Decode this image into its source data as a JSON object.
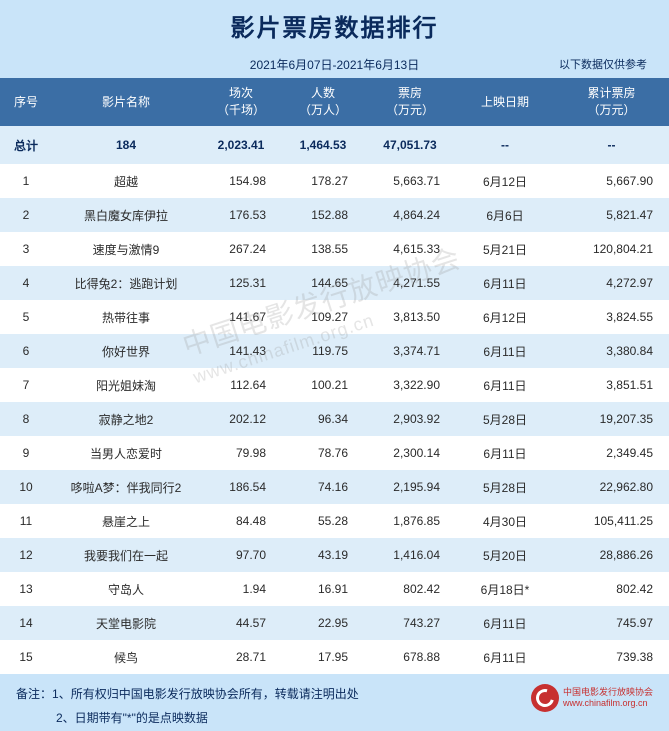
{
  "title": "影片票房数据排行",
  "date_range": "2021年6月07日-2021年6月13日",
  "disclaimer": "以下数据仅供参考",
  "columns": {
    "rank": "序号",
    "name": "影片名称",
    "screenings": "场次",
    "screenings_unit": "（千场）",
    "admissions": "人数",
    "admissions_unit": "（万人）",
    "box_office": "票房",
    "box_office_unit": "（万元）",
    "release_date": "上映日期",
    "cumulative": "累计票房",
    "cumulative_unit": "（万元）"
  },
  "total": {
    "label": "总计",
    "count": "184",
    "screenings": "2,023.41",
    "admissions": "1,464.53",
    "box_office": "47,051.73",
    "release_date": "--",
    "cumulative": "--"
  },
  "rows": [
    {
      "rank": "1",
      "name": "超越",
      "screenings": "154.98",
      "admissions": "178.27",
      "box_office": "5,663.71",
      "release_date": "6月12日",
      "cumulative": "5,667.90"
    },
    {
      "rank": "2",
      "name": "黑白魔女库伊拉",
      "screenings": "176.53",
      "admissions": "152.88",
      "box_office": "4,864.24",
      "release_date": "6月6日",
      "cumulative": "5,821.47"
    },
    {
      "rank": "3",
      "name": "速度与激情9",
      "screenings": "267.24",
      "admissions": "138.55",
      "box_office": "4,615.33",
      "release_date": "5月21日",
      "cumulative": "120,804.21"
    },
    {
      "rank": "4",
      "name": "比得兔2：逃跑计划",
      "screenings": "125.31",
      "admissions": "144.65",
      "box_office": "4,271.55",
      "release_date": "6月11日",
      "cumulative": "4,272.97"
    },
    {
      "rank": "5",
      "name": "热带往事",
      "screenings": "141.67",
      "admissions": "109.27",
      "box_office": "3,813.50",
      "release_date": "6月12日",
      "cumulative": "3,824.55"
    },
    {
      "rank": "6",
      "name": "你好世界",
      "screenings": "141.43",
      "admissions": "119.75",
      "box_office": "3,374.71",
      "release_date": "6月11日",
      "cumulative": "3,380.84"
    },
    {
      "rank": "7",
      "name": "阳光姐妹淘",
      "screenings": "112.64",
      "admissions": "100.21",
      "box_office": "3,322.90",
      "release_date": "6月11日",
      "cumulative": "3,851.51"
    },
    {
      "rank": "8",
      "name": "寂静之地2",
      "screenings": "202.12",
      "admissions": "96.34",
      "box_office": "2,903.92",
      "release_date": "5月28日",
      "cumulative": "19,207.35"
    },
    {
      "rank": "9",
      "name": "当男人恋爱时",
      "screenings": "79.98",
      "admissions": "78.76",
      "box_office": "2,300.14",
      "release_date": "6月11日",
      "cumulative": "2,349.45"
    },
    {
      "rank": "10",
      "name": "哆啦A梦：伴我同行2",
      "screenings": "186.54",
      "admissions": "74.16",
      "box_office": "2,195.94",
      "release_date": "5月28日",
      "cumulative": "22,962.80"
    },
    {
      "rank": "11",
      "name": "悬崖之上",
      "screenings": "84.48",
      "admissions": "55.28",
      "box_office": "1,876.85",
      "release_date": "4月30日",
      "cumulative": "105,411.25"
    },
    {
      "rank": "12",
      "name": "我要我们在一起",
      "screenings": "97.70",
      "admissions": "43.19",
      "box_office": "1,416.04",
      "release_date": "5月20日",
      "cumulative": "28,886.26"
    },
    {
      "rank": "13",
      "name": "守岛人",
      "screenings": "1.94",
      "admissions": "16.91",
      "box_office": "802.42",
      "release_date": "6月18日*",
      "cumulative": "802.42"
    },
    {
      "rank": "14",
      "name": "天堂电影院",
      "screenings": "44.57",
      "admissions": "22.95",
      "box_office": "743.27",
      "release_date": "6月11日",
      "cumulative": "745.97"
    },
    {
      "rank": "15",
      "name": "候鸟",
      "screenings": "28.71",
      "admissions": "17.95",
      "box_office": "678.88",
      "release_date": "6月11日",
      "cumulative": "739.38"
    }
  ],
  "footer": {
    "label": "备注：",
    "note1": "1、所有权归中国电影发行放映协会所有，转载请注明出处",
    "note2": "2、日期带有\"*\"的是点映数据"
  },
  "logo": {
    "text1": "中国电影发行放映协会",
    "text2": "www.chinafilm.org.cn"
  },
  "watermark": {
    "line1": "中国电影发行放映协会",
    "line2": "www.chinafilm.org.cn"
  },
  "colors": {
    "header_bg": "#c9e4f9",
    "thead_bg": "#3b6ea5",
    "row_alt_bg": "#ddedf9",
    "title_color": "#0a2a5c",
    "logo_red": "#c73030"
  }
}
